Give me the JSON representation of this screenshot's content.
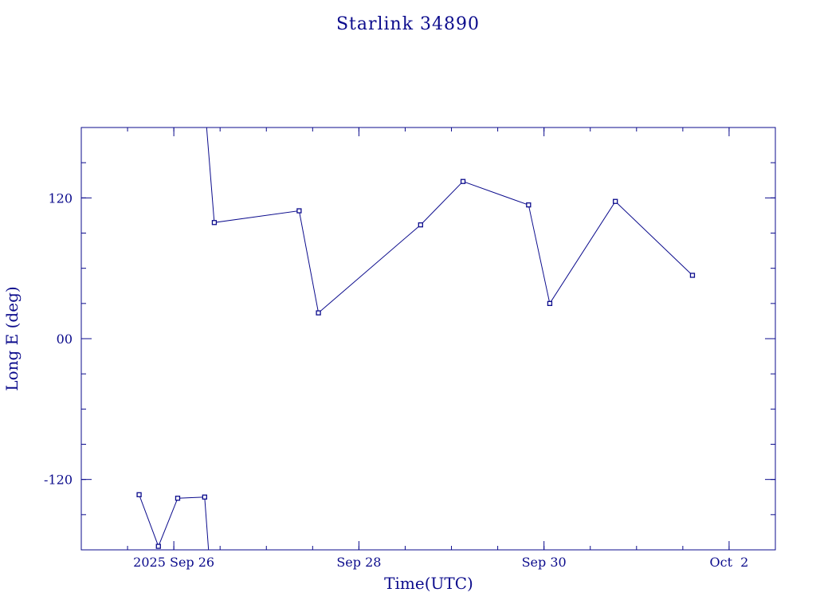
{
  "chart_data": {
    "type": "line",
    "title": "Starlink 34890",
    "xlabel": "Time(UTC)",
    "ylabel": "Long E (deg)",
    "x_axis": {
      "start": "2025-09-25T00:00",
      "end": "2025-10-02T12:00",
      "major_ticks": [
        {
          "at": "2025-09-26T00:00",
          "label": "2025 Sep 26"
        },
        {
          "at": "2025-09-28T00:00",
          "label": "Sep 28"
        },
        {
          "at": "2025-09-30T00:00",
          "label": "Sep 30"
        },
        {
          "at": "2025-10-02T00:00",
          "label": "Oct  2"
        }
      ],
      "minor_tick_hours": 12
    },
    "y_axis": {
      "ylim": [
        -180,
        180
      ],
      "major_ticks": [
        {
          "value": -120,
          "label": "-120"
        },
        {
          "value": 0,
          "label": "00"
        },
        {
          "value": 120,
          "label": "120"
        }
      ],
      "minor_step": 30
    },
    "series": [
      {
        "segments": [
          [
            {
              "x": "2025-09-25T15:00",
              "y": -133
            },
            {
              "x": "2025-09-25T20:00",
              "y": -177
            },
            {
              "x": "2025-09-26T01:00",
              "y": -136
            },
            {
              "x": "2025-09-26T08:00",
              "y": -135
            },
            {
              "x": "2025-09-26T09:00",
              "y": -180
            }
          ],
          [
            {
              "x": "2025-09-26T08:30",
              "y": 180
            },
            {
              "x": "2025-09-26T10:30",
              "y": 99
            },
            {
              "x": "2025-09-27T08:30",
              "y": 109
            },
            {
              "x": "2025-09-27T13:30",
              "y": 22
            },
            {
              "x": "2025-09-28T16:00",
              "y": 97
            },
            {
              "x": "2025-09-29T03:00",
              "y": 134
            },
            {
              "x": "2025-09-29T20:00",
              "y": 114
            },
            {
              "x": "2025-09-30T01:30",
              "y": 30
            },
            {
              "x": "2025-09-30T18:30",
              "y": 117
            },
            {
              "x": "2025-10-01T14:30",
              "y": 54
            }
          ]
        ],
        "markers": [
          {
            "x": "2025-09-25T15:00",
            "y": -133
          },
          {
            "x": "2025-09-25T20:00",
            "y": -177
          },
          {
            "x": "2025-09-26T01:00",
            "y": -136
          },
          {
            "x": "2025-09-26T08:00",
            "y": -135
          },
          {
            "x": "2025-09-26T10:30",
            "y": 99
          },
          {
            "x": "2025-09-27T08:30",
            "y": 109
          },
          {
            "x": "2025-09-27T13:30",
            "y": 22
          },
          {
            "x": "2025-09-28T16:00",
            "y": 97
          },
          {
            "x": "2025-09-29T03:00",
            "y": 134
          },
          {
            "x": "2025-09-29T20:00",
            "y": 114
          },
          {
            "x": "2025-09-30T01:30",
            "y": 30
          },
          {
            "x": "2025-09-30T18:30",
            "y": 117
          },
          {
            "x": "2025-10-01T14:30",
            "y": 54
          }
        ]
      }
    ],
    "grid": false,
    "legend": "none"
  }
}
